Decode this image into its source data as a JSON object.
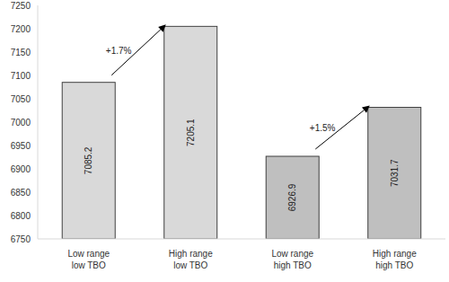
{
  "chart_data": {
    "type": "bar",
    "categories": [
      "Low range low TBO",
      "High range low TBO",
      "Low range high TBO",
      "High range high TBO"
    ],
    "values": [
      7085.2,
      7205.1,
      6926.9,
      7031.7
    ],
    "colors": [
      "#d9d9d9",
      "#d9d9d9",
      "#bfbfbf",
      "#bfbfbf"
    ],
    "ylim": [
      6750,
      7250
    ],
    "yticks": [
      6750,
      6800,
      6850,
      6900,
      6950,
      7000,
      7050,
      7100,
      7150,
      7200,
      7250
    ],
    "grid": false,
    "data_labels": true,
    "annotations": [
      {
        "text": "+1.7%",
        "from": "Low range low TBO",
        "to": "High range low TBO"
      },
      {
        "text": "+1.5%",
        "from": "Low range high TBO",
        "to": "High range high TBO"
      }
    ]
  }
}
